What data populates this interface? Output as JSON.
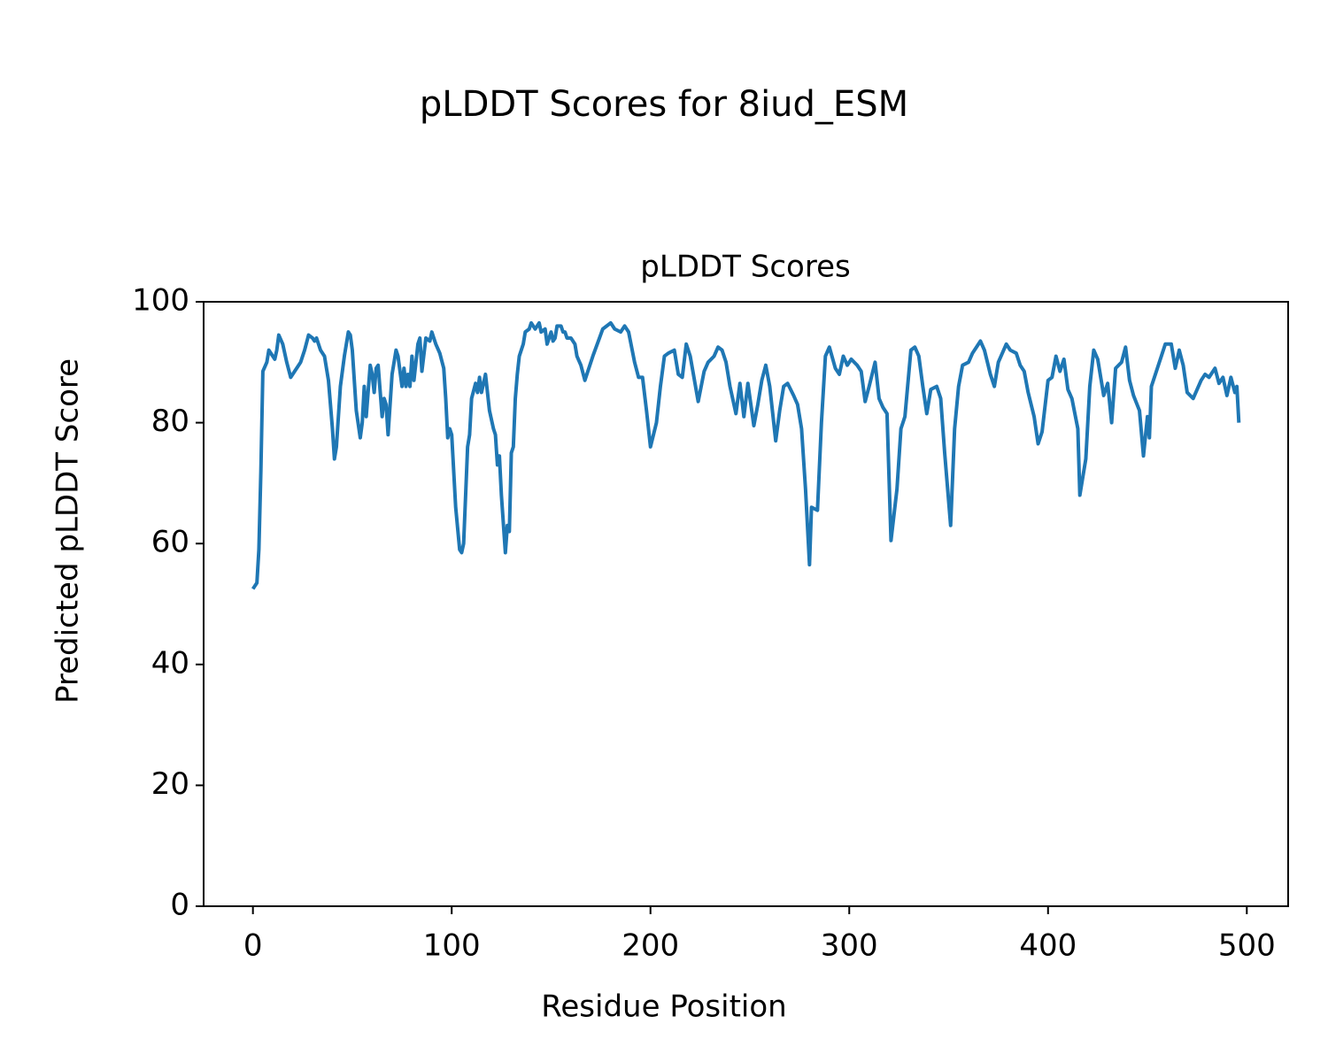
{
  "chart_data": {
    "type": "line",
    "title": "pLDDT Scores for 8iud_ESM",
    "subtitle": "pLDDT Scores",
    "x_label": "Residue Position",
    "y_label": "Predicted pLDDT Score",
    "color": "#1f77b4",
    "grid": false,
    "xlim": [
      -24.8,
      520.8
    ],
    "ylim": [
      0,
      100
    ],
    "xticks": [
      0,
      100,
      200,
      300,
      400,
      500
    ],
    "yticks": [
      0,
      20,
      40,
      60,
      80,
      100
    ],
    "x": [
      0,
      2,
      3,
      4,
      5,
      7,
      8,
      10,
      11,
      12,
      13,
      15,
      17,
      19,
      22,
      24,
      26,
      28,
      30,
      31,
      32,
      34,
      36,
      38,
      40,
      41,
      42,
      44,
      46,
      48,
      49,
      50,
      52,
      54,
      55,
      56,
      57,
      59,
      60,
      61,
      62,
      63,
      65,
      66,
      67,
      68,
      70,
      72,
      73,
      75,
      76,
      77,
      78,
      79,
      80,
      81,
      83,
      84,
      85,
      87,
      89,
      90,
      92,
      94,
      96,
      97,
      98,
      99,
      100,
      102,
      104,
      105,
      106,
      108,
      109,
      110,
      112,
      113,
      114,
      115,
      117,
      119,
      121,
      122,
      123,
      124,
      125,
      127,
      128,
      129,
      130,
      131,
      132,
      133,
      134,
      136,
      137,
      139,
      140,
      141,
      142,
      144,
      145,
      147,
      148,
      149,
      150,
      151,
      152,
      153,
      155,
      156,
      157,
      158,
      160,
      162,
      163,
      165,
      167,
      171,
      176,
      180,
      182,
      185,
      187,
      189,
      192,
      194,
      196,
      198,
      200,
      203,
      205,
      207,
      209,
      212,
      214,
      216,
      218,
      220,
      224,
      227,
      229,
      232,
      234,
      236,
      238,
      240,
      243,
      245,
      247,
      249,
      252,
      254,
      256,
      258,
      260,
      263,
      265,
      267,
      269,
      272,
      274,
      276,
      278,
      280,
      281,
      284,
      286,
      288,
      290,
      293,
      295,
      297,
      299,
      301,
      304,
      306,
      308,
      310,
      313,
      315,
      317,
      319,
      321,
      324,
      326,
      328,
      331,
      333,
      335,
      337,
      339,
      341,
      344,
      346,
      348,
      351,
      353,
      355,
      357,
      360,
      362,
      364,
      366,
      368,
      371,
      373,
      375,
      377,
      379,
      381,
      384,
      386,
      388,
      390,
      393,
      395,
      397,
      400,
      402,
      404,
      406,
      408,
      410,
      412,
      415,
      416,
      419,
      421,
      423,
      425,
      428,
      430,
      432,
      434,
      437,
      439,
      441,
      443,
      446,
      448,
      450,
      451,
      452,
      455,
      457,
      459,
      462,
      464,
      466,
      468,
      470,
      473,
      475,
      477,
      479,
      481,
      484,
      486,
      488,
      490,
      492,
      494,
      495,
      496
    ],
    "values": [
      52.5,
      53.5,
      59,
      72,
      88.5,
      90,
      92,
      91,
      90.5,
      92,
      94.5,
      93,
      90,
      87.5,
      89,
      90,
      92,
      94.5,
      94,
      93.5,
      94,
      92,
      91,
      87,
      79,
      74,
      76,
      86,
      91,
      95,
      94.5,
      92,
      82,
      77.5,
      80,
      86,
      81,
      89.5,
      88,
      85,
      89,
      89.5,
      81,
      84,
      83,
      78,
      88,
      92,
      91,
      86,
      89,
      86,
      88,
      86,
      91,
      87,
      93,
      94,
      88.5,
      94,
      93.5,
      95,
      93,
      91.5,
      89,
      84,
      77.5,
      79,
      78,
      66,
      59,
      58.5,
      60,
      76,
      78,
      84,
      86.5,
      85,
      87.5,
      85,
      88,
      82,
      79,
      78,
      73,
      74.5,
      68,
      58.5,
      63,
      62,
      75,
      76,
      84,
      88,
      91,
      93,
      95,
      95.5,
      96.5,
      96,
      95.5,
      96.5,
      95,
      95.5,
      93,
      94,
      95,
      93.5,
      94,
      96,
      96,
      95,
      95,
      94,
      94,
      93,
      91,
      89.5,
      87,
      91,
      95.5,
      96.5,
      95.5,
      95,
      96,
      95,
      90,
      87.5,
      87.5,
      82,
      76,
      80,
      86,
      91,
      91.5,
      92,
      88,
      87.5,
      93,
      91,
      83.5,
      88.5,
      90,
      91,
      92.5,
      92,
      90,
      86,
      81.5,
      86.5,
      81,
      86.5,
      79.5,
      83,
      87,
      89.5,
      86,
      77,
      82,
      86,
      86.5,
      84.5,
      83,
      79,
      69,
      56.5,
      66,
      65.5,
      80,
      91,
      92.5,
      89,
      88,
      91,
      89.5,
      90.5,
      89.5,
      88.5,
      83.5,
      86,
      90,
      84,
      82.5,
      81.5,
      60.5,
      69,
      79,
      81,
      92,
      92.5,
      91,
      86,
      81.5,
      85.5,
      86,
      84,
      75,
      63,
      79,
      86,
      89.5,
      90,
      91.5,
      92.5,
      93.5,
      92,
      88,
      86,
      90,
      91.5,
      93,
      92,
      91.5,
      89.5,
      88.5,
      85,
      81,
      76.5,
      78.5,
      87,
      87.5,
      91,
      88.5,
      90.5,
      85.5,
      84,
      79,
      68,
      74,
      86,
      92,
      90.5,
      84.5,
      86.5,
      80,
      89,
      90,
      92.5,
      87,
      84.5,
      82,
      74.5,
      81,
      77.5,
      86,
      89,
      91,
      93,
      93,
      89,
      92,
      89.5,
      85,
      84,
      85.5,
      87,
      88,
      87.5,
      89,
      86.5,
      87.5,
      84.5,
      87.5,
      85,
      86,
      80
    ]
  }
}
